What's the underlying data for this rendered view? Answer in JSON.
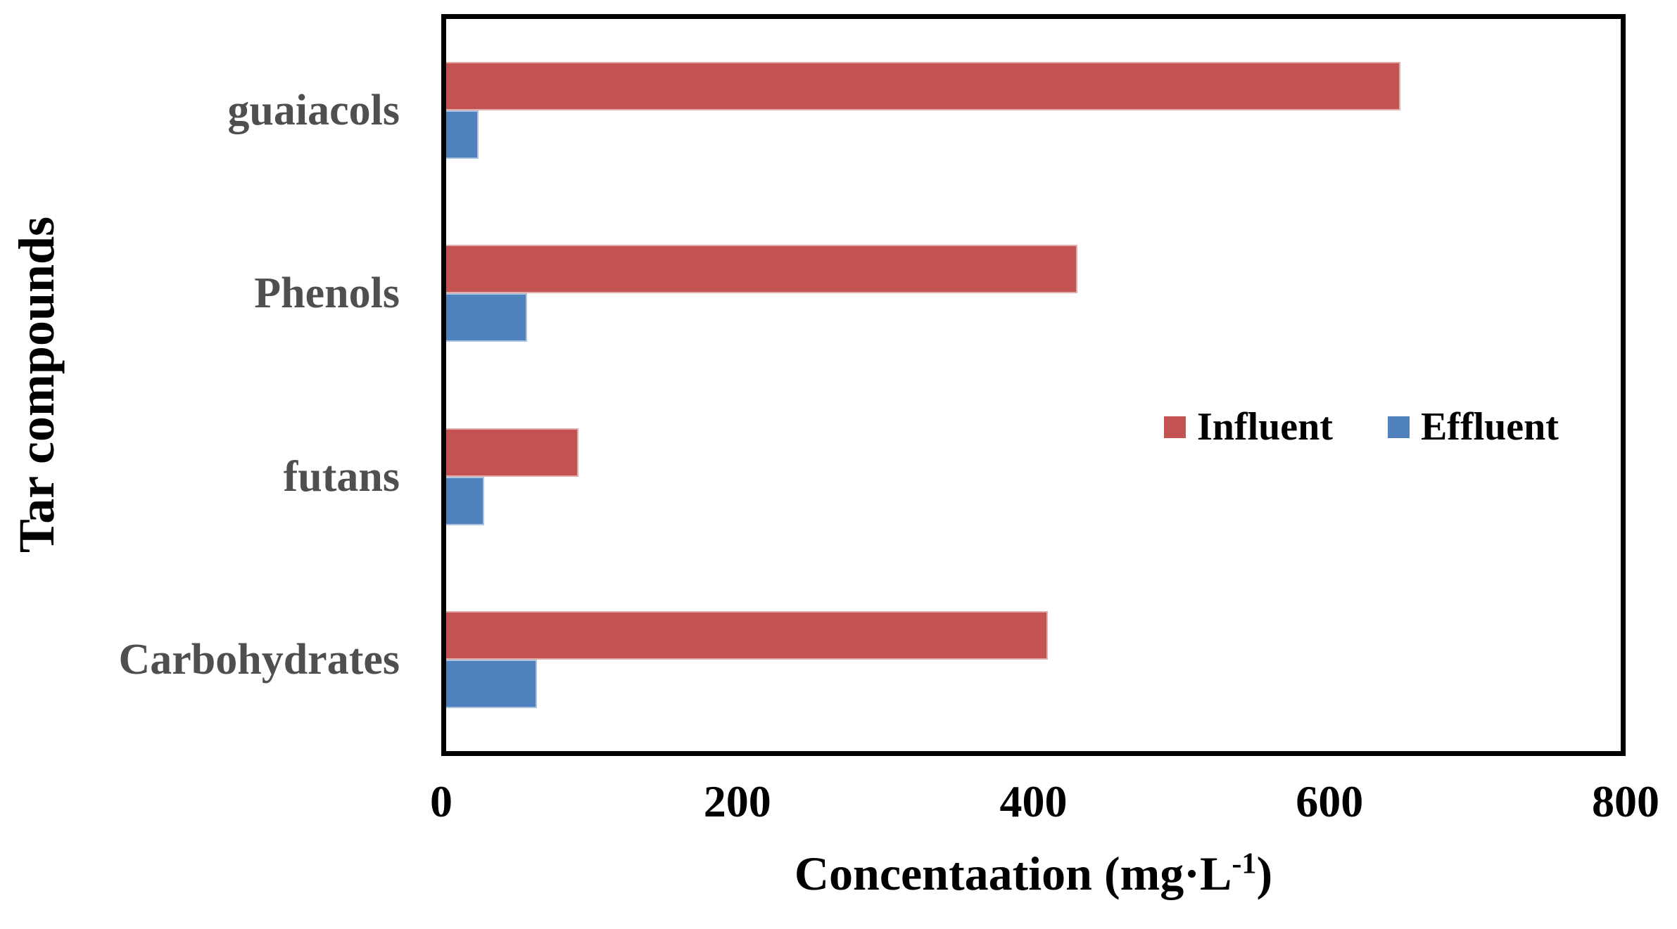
{
  "chart_data": {
    "type": "bar",
    "orientation": "horizontal",
    "title": "",
    "categories": [
      "guaiacols",
      "Phenols",
      "futans",
      "Carbohydrates"
    ],
    "series": [
      {
        "name": "Influent",
        "color": "#C25350",
        "edge_color": "#E2ACAA",
        "values": [
          650,
          430,
          90,
          410
        ]
      },
      {
        "name": "Effluent",
        "color": "#4F81BD",
        "edge_color": "#ACC4E0",
        "values": [
          22,
          55,
          26,
          62
        ]
      }
    ],
    "xlabel": "Concentaation (mg·L⁻¹)",
    "xlabel_parts": {
      "base": "Concentaation (mg·L",
      "sup": "-1",
      "close": ")"
    },
    "ylabel": "Tar compounds",
    "xlim": [
      0,
      800
    ],
    "xticks": [
      "0",
      "200",
      "400",
      "600",
      "800"
    ],
    "grid": false,
    "legend_position": "inside-middle-right",
    "plot_border_color": "#000000",
    "category_label_color": "#4F4F4F",
    "axis_text_color": "#000000",
    "background_color": "#FFFFFF"
  }
}
